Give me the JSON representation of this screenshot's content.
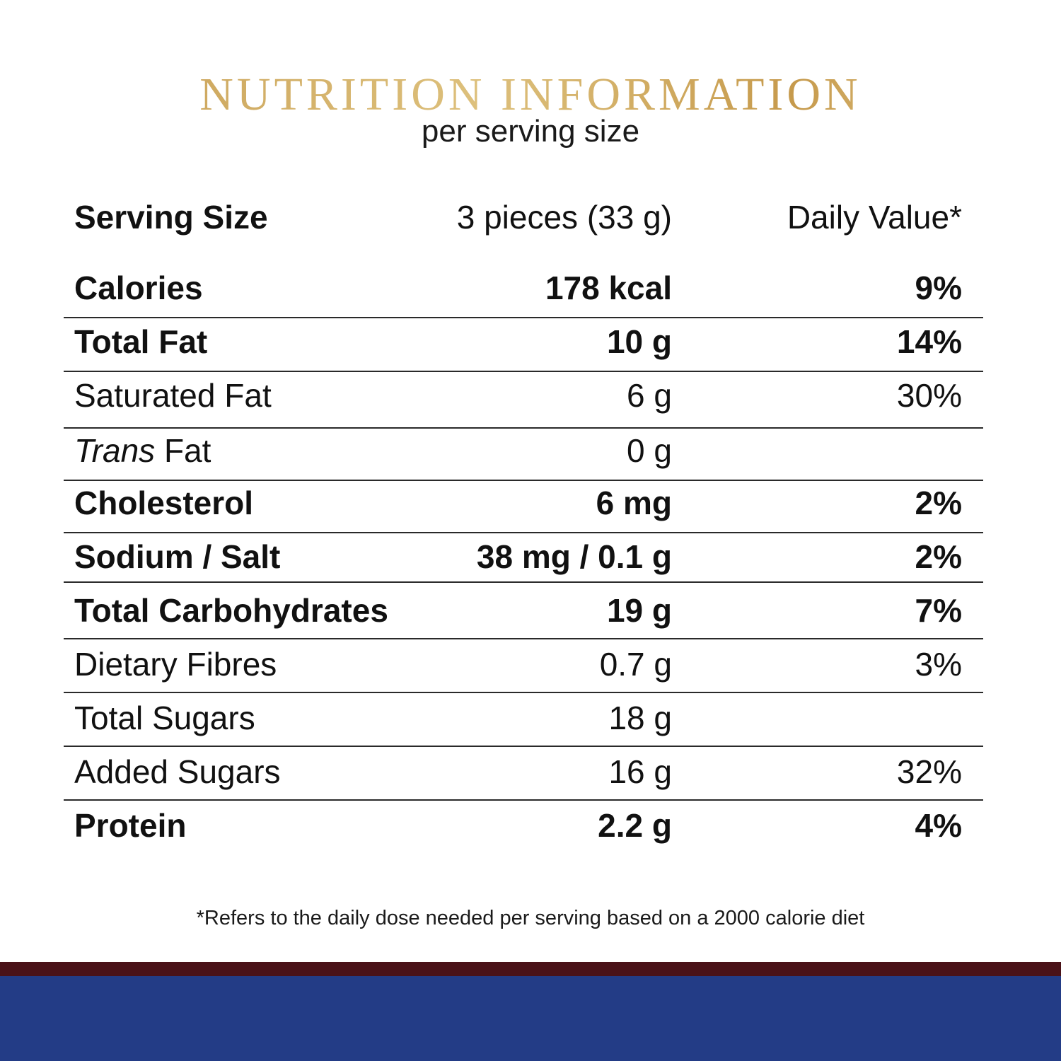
{
  "title": "NUTRITION INFORMATION",
  "subtitle": "per serving size",
  "header": {
    "label": "Serving Size",
    "amount": "3 pieces (33 g)",
    "dv": "Daily Value*"
  },
  "rows": [
    {
      "label": "Calories",
      "amount": "178 kcal",
      "dv": "9%"
    },
    {
      "label": "Total Fat",
      "amount": "10 g",
      "dv": "14%"
    },
    {
      "label": "Saturated Fat",
      "amount": "6 g",
      "dv": "30%"
    },
    {
      "label_italic": "Trans",
      "label": "Fat",
      "amount": "0 g",
      "dv": ""
    },
    {
      "label": "Cholesterol",
      "amount": "6 mg",
      "dv": "2%"
    },
    {
      "label": "Sodium / Salt",
      "amount": "38 mg / 0.1 g",
      "dv": "2%"
    },
    {
      "label": "Total Carbohydrates",
      "amount": "19 g",
      "dv": "7%"
    },
    {
      "label": "Dietary Fibres",
      "amount": "0.7 g",
      "dv": "3%"
    },
    {
      "label": "Total Sugars",
      "amount": "18 g",
      "dv": ""
    },
    {
      "label": "Added Sugars",
      "amount": "16 g",
      "dv": "32%"
    },
    {
      "label": "Protein",
      "amount": "2.2 g",
      "dv": "4%"
    }
  ],
  "footnote": "*Refers to the daily dose needed per serving based on a 2000 calorie diet",
  "colors": {
    "title_gold": "#c9a25a",
    "band_dark": "#4a1218",
    "band_blue": "#233c86"
  }
}
